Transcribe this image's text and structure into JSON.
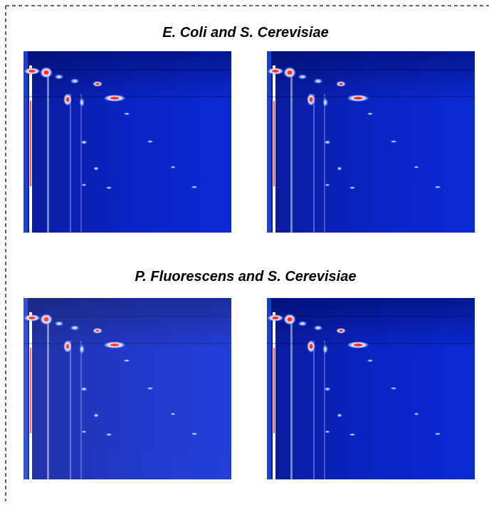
{
  "figure": {
    "panels": [
      {
        "title": "E. Coli and S. Cerevisiae"
      },
      {
        "title": "P. Fluorescens and S. Cerevisiae"
      }
    ]
  }
}
